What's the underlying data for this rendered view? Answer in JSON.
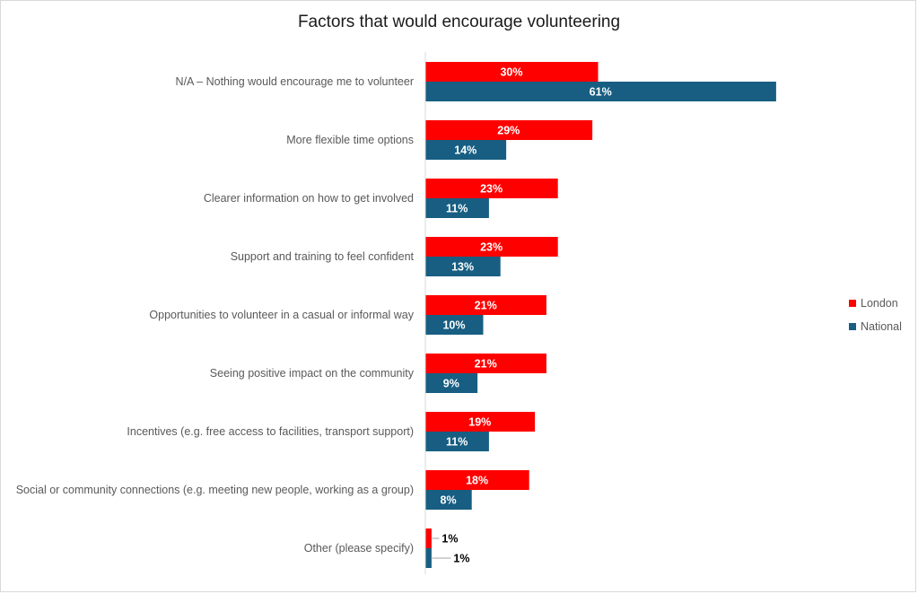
{
  "chart_data": {
    "type": "bar",
    "orientation": "horizontal",
    "title": "Factors that would encourage volunteering",
    "xlabel": "",
    "ylabel": "",
    "xlim": [
      0,
      61
    ],
    "grid": false,
    "legend_position": "right",
    "categories": [
      "N/A – Nothing would encourage me to volunteer",
      "More flexible time options",
      "Clearer information on how to get involved",
      "Support and training to feel confident",
      "Opportunities to volunteer in a casual or informal way",
      "Seeing positive impact on the community",
      "Incentives (e.g. free access to facilities, transport support)",
      "Social or community connections (e.g. meeting new people, working as a group)",
      "Other (please specify)"
    ],
    "series": [
      {
        "name": "London",
        "color": "#ff0000",
        "values": [
          30,
          29,
          23,
          23,
          21,
          21,
          19,
          18,
          1
        ],
        "labels": [
          "30%",
          "29%",
          "23%",
          "23%",
          "21%",
          "21%",
          "19%",
          "18%",
          "1%"
        ]
      },
      {
        "name": "National",
        "color": "#175e82",
        "values": [
          61,
          14,
          11,
          13,
          10,
          9,
          11,
          8,
          1
        ],
        "labels": [
          "61%",
          "14%",
          "11%",
          "13%",
          "10%",
          "9%",
          "11%",
          "8%",
          "1%"
        ]
      }
    ]
  }
}
